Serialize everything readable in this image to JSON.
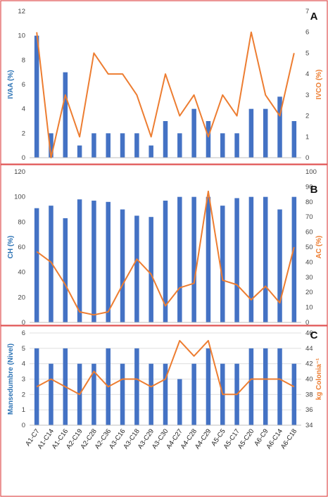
{
  "colors": {
    "bar": "#4472C4",
    "line": "#ED7D31",
    "border": "#E05050",
    "grid": "#D9D9D9"
  },
  "chart_data": [
    {
      "panel_label": "A",
      "type": "bar+line",
      "categories": [
        "A1-C7",
        "A1-C14",
        "A1-C16",
        "A2-C19",
        "A2-C28",
        "A2-C36",
        "A3-C16",
        "A3-C18",
        "A3-C29",
        "A3-C30",
        "A4-C27",
        "A4-C28",
        "A4-C29",
        "A5-C5",
        "A5-C17",
        "A5-C20",
        "A6-C9",
        "A6-C14",
        "A6-C18"
      ],
      "ylabel": "IVAA (%)",
      "y2label": "IVCO (%)",
      "ylim": [
        0,
        12
      ],
      "yticks": [
        0,
        2,
        4,
        6,
        8,
        10,
        12
      ],
      "y2lim": [
        0,
        7
      ],
      "y2ticks": [
        0,
        1,
        2,
        3,
        4,
        5,
        6,
        7
      ],
      "grid": false,
      "series": [
        {
          "axis": "left",
          "kind": "bar",
          "values": [
            10,
            2,
            7,
            1,
            2,
            2,
            2,
            2,
            1,
            3,
            2,
            4,
            3,
            2,
            2,
            4,
            4,
            5,
            3
          ]
        },
        {
          "axis": "right",
          "kind": "line",
          "values": [
            6,
            0,
            3,
            1,
            5,
            4,
            4,
            3,
            1,
            4,
            2,
            3,
            1,
            3,
            2,
            6,
            3,
            2,
            5
          ]
        }
      ]
    },
    {
      "panel_label": "B",
      "type": "bar+line",
      "categories": [
        "A1-C7",
        "A1-C14",
        "A1-C16",
        "A2-C19",
        "A2-C28",
        "A2-C36",
        "A3-C16",
        "A3-C18",
        "A3-C29",
        "A3-C30",
        "A4-C27",
        "A4-C28",
        "A4-C29",
        "A5-C5",
        "A5-C17",
        "A5-C20",
        "A6-C9",
        "A6-C14",
        "A6-C18"
      ],
      "ylabel": "CH (%)",
      "y2label": "AC (%)",
      "ylim": [
        0,
        120
      ],
      "yticks": [
        0,
        20,
        40,
        60,
        80,
        100,
        120
      ],
      "y2lim": [
        0,
        100
      ],
      "y2ticks": [
        0,
        10,
        20,
        30,
        40,
        50,
        60,
        70,
        80,
        90,
        100
      ],
      "grid": false,
      "series": [
        {
          "axis": "left",
          "kind": "bar",
          "values": [
            91,
            93,
            83,
            98,
            97,
            96,
            90,
            85,
            84,
            97,
            100,
            100,
            100,
            93,
            99,
            100,
            100,
            90,
            100
          ]
        },
        {
          "axis": "right",
          "kind": "line",
          "values": [
            47,
            40,
            25,
            7,
            5,
            7,
            25,
            42,
            32,
            11,
            23,
            26,
            87,
            28,
            25,
            15,
            24,
            13,
            50
          ]
        }
      ]
    },
    {
      "panel_label": "C",
      "type": "bar+line",
      "categories": [
        "A1-C7",
        "A1-C14",
        "A1-C16",
        "A2-C19",
        "A2-C28",
        "A2-C36",
        "A3-C16",
        "A3-C18",
        "A3-C29",
        "A3-C30",
        "A4-C27",
        "A4-C28",
        "A4-C29",
        "A5-C5",
        "A5-C17",
        "A5-C20",
        "A6-C9",
        "A6-C14",
        "A6-C18"
      ],
      "ylabel": "Mansedumbre (Nivel)",
      "y2label": "kg Colonia⁻¹",
      "ylim": [
        0,
        6
      ],
      "yticks": [
        0,
        1,
        2,
        3,
        4,
        5,
        6
      ],
      "y2lim": [
        34,
        46
      ],
      "y2ticks": [
        34,
        36,
        38,
        40,
        42,
        44,
        46
      ],
      "grid": true,
      "series": [
        {
          "axis": "left",
          "kind": "bar",
          "values": [
            5,
            4,
            5,
            4,
            4,
            5,
            4,
            5,
            4,
            4,
            3,
            4,
            5,
            4,
            4,
            5,
            5,
            5,
            4
          ]
        },
        {
          "axis": "right",
          "kind": "line",
          "values": [
            39,
            40,
            39,
            38,
            41,
            39,
            40,
            40,
            39,
            40,
            45,
            43,
            45,
            38,
            38,
            40,
            40,
            40,
            39
          ]
        }
      ]
    }
  ]
}
